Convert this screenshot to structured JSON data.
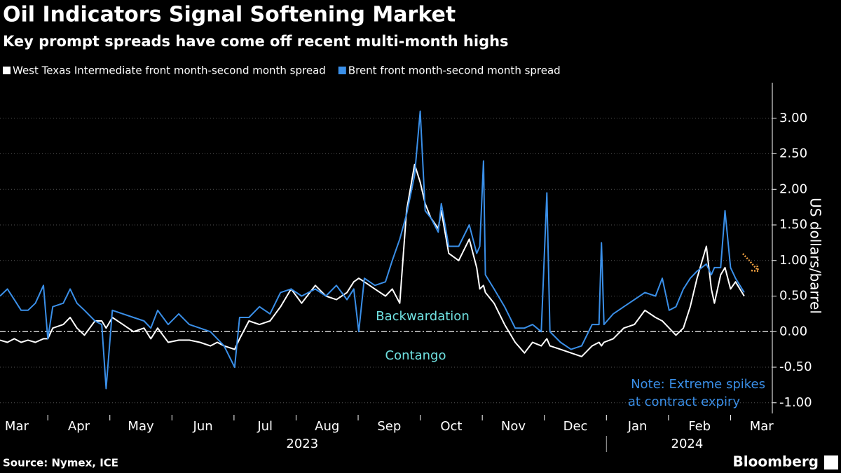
{
  "chart_data": {
    "type": "line",
    "title": "Oil Indicators Signal Softening Market",
    "subtitle": "Key prompt spreads have come off recent multi-month highs",
    "ylabel": "US dollars/barrel",
    "source": "Source: Nymex, ICE",
    "brand": "Bloomberg",
    "annotations": {
      "backwardation": "Backwardation",
      "contango": "Contango",
      "note": [
        "Note: Extreme spikes",
        "at contract expiry"
      ]
    },
    "x": [
      0.23,
      0.35,
      0.46,
      0.57,
      0.68,
      0.8,
      0.93,
      1.0,
      1.08,
      1.25,
      1.36,
      1.47,
      1.59,
      1.76,
      1.87,
      1.94,
      2.04,
      2.21,
      2.38,
      2.55,
      2.66,
      2.77,
      2.94,
      3.11,
      3.28,
      3.45,
      3.62,
      3.73,
      3.84,
      4.01,
      4.09,
      4.24,
      4.41,
      4.58,
      4.75,
      4.92,
      5.09,
      5.31,
      5.48,
      5.65,
      5.82,
      5.93,
      6.01,
      6.1,
      6.27,
      6.44,
      6.55,
      6.67,
      6.78,
      6.91,
      7.0,
      7.08,
      7.17,
      7.29,
      7.34,
      7.46,
      7.62,
      7.79,
      7.91,
      7.96,
      8.02,
      8.05,
      8.19,
      8.36,
      8.53,
      8.68,
      8.81,
      8.95,
      9.04,
      9.09,
      9.26,
      9.43,
      9.6,
      9.77,
      9.88,
      9.92,
      9.96,
      10.11,
      10.28,
      10.45,
      10.62,
      10.79,
      10.9,
      11.01,
      11.12,
      11.24,
      11.35,
      11.46,
      11.61,
      11.69,
      11.74,
      11.84,
      11.91,
      12.0,
      12.08,
      12.22
    ],
    "series": [
      {
        "name": "West Texas Intermediate front month-second month spread",
        "color": "#ffffff",
        "values": [
          -0.12,
          -0.15,
          -0.1,
          -0.15,
          -0.12,
          -0.15,
          -0.1,
          -0.1,
          0.05,
          0.1,
          0.2,
          0.05,
          -0.05,
          0.15,
          0.15,
          0.05,
          0.2,
          0.1,
          0.0,
          0.05,
          -0.1,
          0.05,
          -0.15,
          -0.12,
          -0.12,
          -0.15,
          -0.2,
          -0.15,
          -0.2,
          -0.25,
          -0.1,
          0.15,
          0.1,
          0.15,
          0.35,
          0.6,
          0.4,
          0.65,
          0.5,
          0.45,
          0.55,
          0.7,
          0.75,
          0.7,
          0.6,
          0.5,
          0.6,
          0.4,
          1.7,
          2.35,
          2.1,
          1.8,
          1.6,
          1.45,
          1.7,
          1.1,
          1.0,
          1.3,
          0.9,
          0.6,
          0.65,
          0.55,
          0.4,
          0.1,
          -0.15,
          -0.3,
          -0.15,
          -0.2,
          -0.1,
          -0.2,
          -0.25,
          -0.3,
          -0.35,
          -0.2,
          -0.15,
          -0.2,
          -0.15,
          -0.1,
          0.05,
          0.1,
          0.3,
          0.2,
          0.15,
          0.05,
          -0.05,
          0.05,
          0.35,
          0.75,
          1.2,
          0.6,
          0.4,
          0.8,
          0.9,
          0.6,
          0.7,
          0.5
        ]
      },
      {
        "name": "Brent front month-second month spread",
        "color": "#3a8fe8",
        "values": [
          0.5,
          0.6,
          0.45,
          0.3,
          0.3,
          0.4,
          0.65,
          -0.1,
          0.35,
          0.4,
          0.6,
          0.4,
          0.3,
          0.15,
          0.1,
          -0.8,
          0.3,
          0.25,
          0.2,
          0.15,
          0.05,
          0.3,
          0.1,
          0.25,
          0.1,
          0.05,
          0.0,
          -0.1,
          -0.2,
          -0.5,
          0.2,
          0.2,
          0.35,
          0.25,
          0.55,
          0.6,
          0.5,
          0.6,
          0.5,
          0.65,
          0.45,
          0.6,
          0.0,
          0.75,
          0.65,
          0.7,
          1.0,
          1.3,
          1.65,
          2.2,
          3.1,
          1.7,
          1.6,
          1.4,
          1.8,
          1.2,
          1.2,
          1.5,
          1.1,
          1.2,
          2.4,
          0.8,
          0.6,
          0.35,
          0.05,
          0.05,
          0.1,
          0.0,
          1.95,
          0.0,
          -0.15,
          -0.25,
          -0.2,
          0.1,
          0.1,
          1.25,
          0.1,
          0.25,
          0.35,
          0.45,
          0.55,
          0.5,
          0.75,
          0.3,
          0.35,
          0.6,
          0.75,
          0.85,
          0.95,
          0.8,
          0.9,
          0.9,
          1.7,
          0.9,
          0.75,
          0.55
        ]
      }
    ],
    "xlim": [
      0.23,
      12.65
    ],
    "xticks": [
      {
        "value": 0.5,
        "label": "Mar"
      },
      {
        "value": 1.5,
        "label": "Apr"
      },
      {
        "value": 2.5,
        "label": "May"
      },
      {
        "value": 3.5,
        "label": "Jun"
      },
      {
        "value": 4.5,
        "label": "Jul"
      },
      {
        "value": 5.5,
        "label": "Aug"
      },
      {
        "value": 6.5,
        "label": "Sep"
      },
      {
        "value": 7.5,
        "label": "Oct"
      },
      {
        "value": 8.5,
        "label": "Nov"
      },
      {
        "value": 9.5,
        "label": "Dec"
      },
      {
        "value": 10.5,
        "label": "Jan"
      },
      {
        "value": 11.5,
        "label": "Feb"
      },
      {
        "value": 12.5,
        "label": "Mar"
      }
    ],
    "x2ticks": [
      {
        "value": 5.1,
        "label": "2023"
      },
      {
        "value": 11.3,
        "label": "2024"
      }
    ],
    "ylim": [
      -1.15,
      3.5
    ],
    "yticks": [
      {
        "value": -1,
        "label": "-1.00"
      },
      {
        "value": -0.5,
        "label": "-0.50"
      },
      {
        "value": 0,
        "label": "0.00"
      },
      {
        "value": 0.5,
        "label": "0.50"
      },
      {
        "value": 1,
        "label": "1.00"
      },
      {
        "value": 1.5,
        "label": "1.50"
      },
      {
        "value": 2,
        "label": "2.00"
      },
      {
        "value": 2.5,
        "label": "2.50"
      },
      {
        "value": 3,
        "label": "3.00"
      }
    ],
    "grid": true
  }
}
